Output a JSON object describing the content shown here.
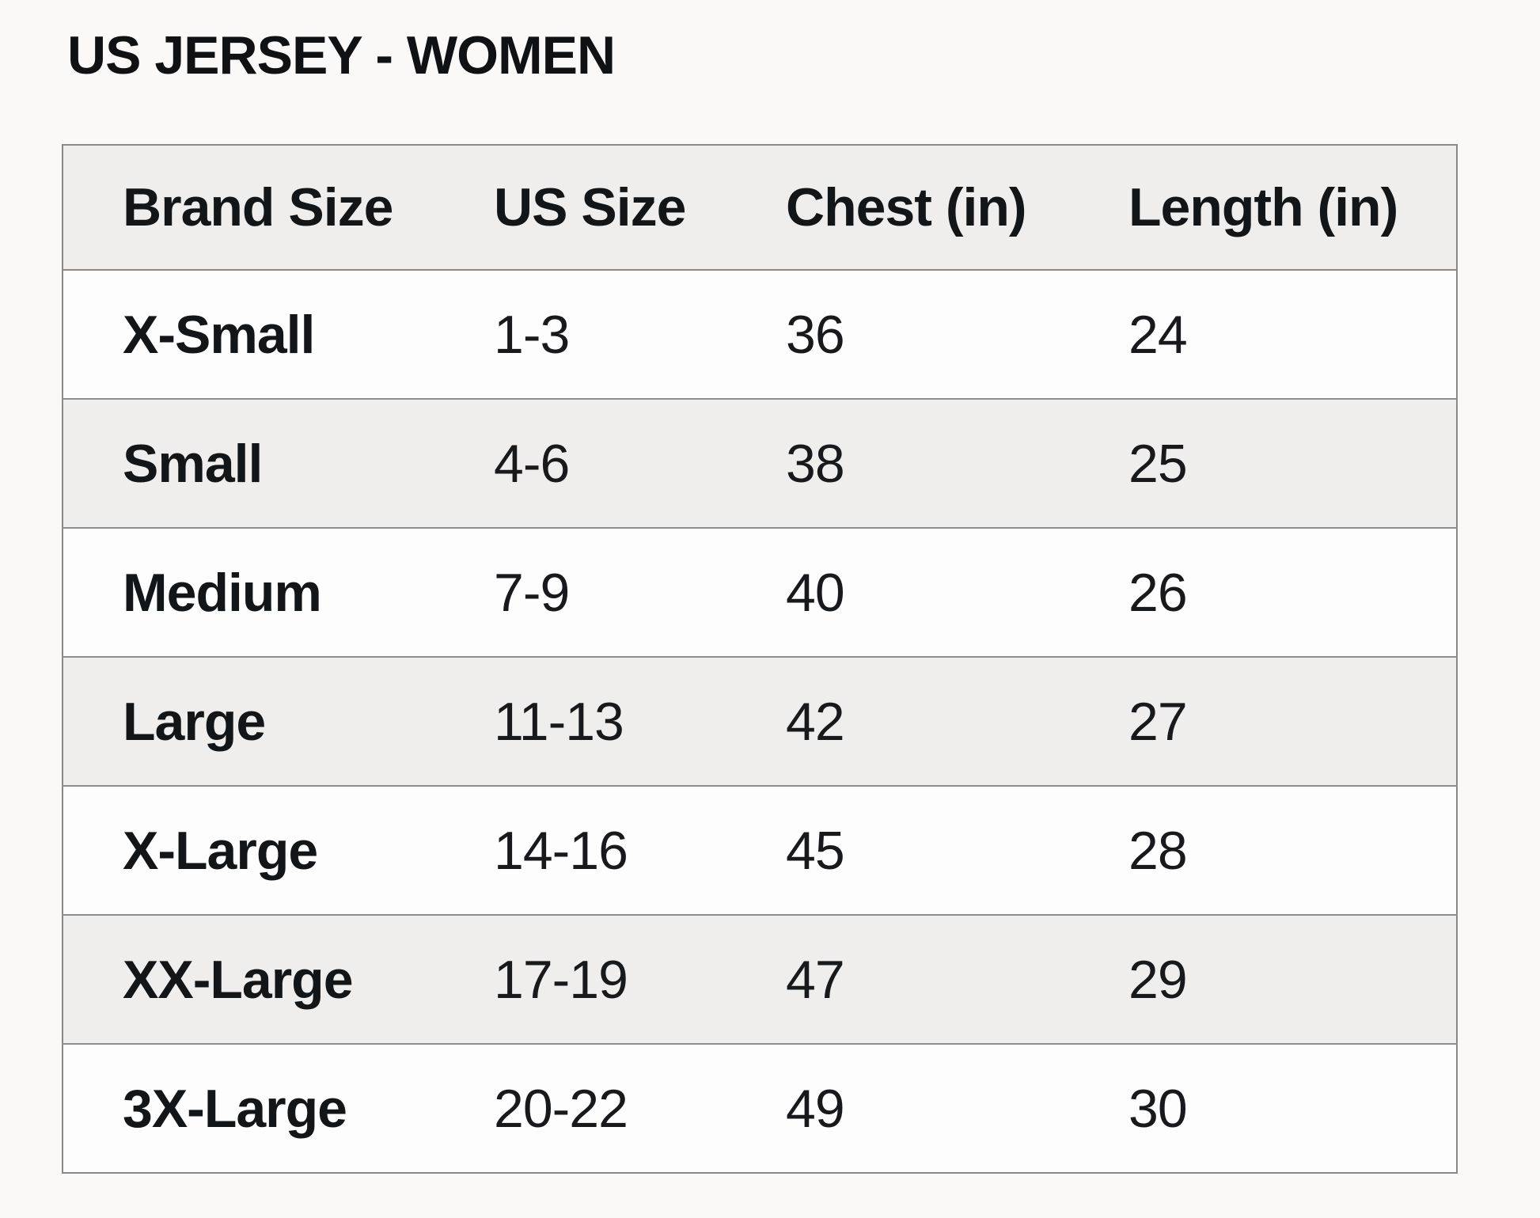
{
  "page": {
    "title": "US JERSEY - WOMEN"
  },
  "size_chart": {
    "columns": [
      "Brand Size",
      "US Size",
      "Chest (in)",
      "Length (in)"
    ],
    "rows": [
      [
        "X-Small",
        "1-3",
        "36",
        "24"
      ],
      [
        "Small",
        "4-6",
        "38",
        "25"
      ],
      [
        "Medium",
        "7-9",
        "40",
        "26"
      ],
      [
        "Large",
        "11-13",
        "42",
        "27"
      ],
      [
        "X-Large",
        "14-16",
        "45",
        "28"
      ],
      [
        "XX-Large",
        "17-19",
        "47",
        "29"
      ],
      [
        "3X-Large",
        "20-22",
        "49",
        "30"
      ]
    ]
  },
  "colors": {
    "page_background": "#faf9f7",
    "header_background": "#efeeec",
    "row_background": "#fdfdfd",
    "row_alt_background": "#efeeec",
    "border": "#898989",
    "text": "#13161a"
  }
}
